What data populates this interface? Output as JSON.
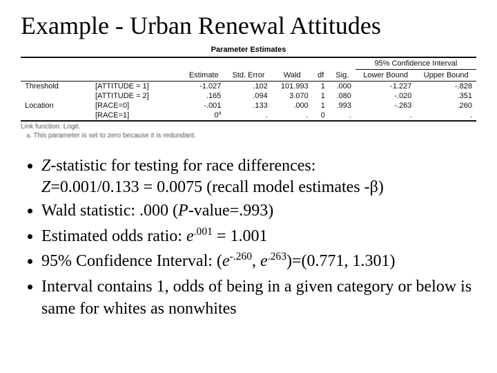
{
  "title": "Example - Urban Renewal Attitudes",
  "table": {
    "caption": "Parameter Estimates",
    "ci_header": "95% Confidence Interval",
    "cols": {
      "estimate": "Estimate",
      "se": "Std. Error",
      "wald": "Wald",
      "df": "df",
      "sig": "Sig.",
      "lb": "Lower Bound",
      "ub": "Upper Bound"
    },
    "stub_labels": {
      "threshold": "Threshold",
      "location": "Location"
    },
    "rows": [
      {
        "stub": "[ATTITUDE = 1]",
        "est": "-1.027",
        "se": ".102",
        "wald": "101.993",
        "df": "1",
        "sig": ".000",
        "lb": "-1.227",
        "ub": "-.828"
      },
      {
        "stub": "[ATTITUDE = 2]",
        "est": ".165",
        "se": ".094",
        "wald": "3.070",
        "df": "1",
        "sig": ".080",
        "lb": "-.020",
        "ub": ".351"
      },
      {
        "stub": "[RACE=0]",
        "est": "-.001",
        "se": ".133",
        "wald": ".000",
        "df": "1",
        "sig": ".993",
        "lb": "-.263",
        "ub": ".260"
      }
    ],
    "zero_row": {
      "stub": "[RACE=1]",
      "est": "0",
      "sup": "a",
      "df": "0"
    },
    "link_fn": "Link function: Logit.",
    "footnote_label": "a.",
    "footnote": "This parameter is set to zero because it is redundant."
  },
  "bullets": {
    "b1a": "-statistic for testing for race differences:",
    "b1b_pre": "=0.001/0.133 = 0.0075 (recall model estimates -",
    "b1b_post": ")",
    "b2_pre": "Wald statistic: .000 (",
    "b2_mid": "-value=.993)",
    "b3_pre": "Estimated odds ratio: ",
    "b3_sup": ".001",
    "b3_post": " = 1.001",
    "b4_pre": "95% Confidence Interval: (",
    "b4_s1": "-.260",
    "b4_mid": ", ",
    "b4_s2": ".263",
    "b4_post": ")=(0.771, 1.301)",
    "b5": "Interval contains 1, odds of being in a given category or below is same for whites as nonwhites"
  },
  "symbols": {
    "Z": "Z",
    "P": "P",
    "e": "e",
    "beta": "β"
  },
  "style": {
    "bg": "#ffffff",
    "fg": "#000000",
    "title_fontsize": 36,
    "body_fontsize": 24,
    "table_fontsize": 11,
    "font_family_body": "Times New Roman",
    "font_family_table": "Arial"
  }
}
